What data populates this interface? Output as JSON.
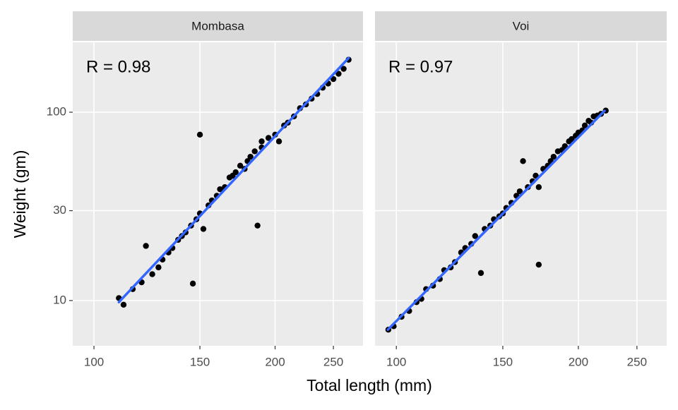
{
  "chart_data": [
    {
      "type": "scatter",
      "title": "Mombasa",
      "annotation": "R = 0.98",
      "x_label": "Total length (mm)",
      "y_label": "Weight (gm)",
      "x": [
        110,
        112,
        116,
        120,
        122,
        125,
        128,
        130,
        133,
        135,
        138,
        140,
        142,
        145,
        146,
        148,
        150,
        150,
        152,
        155,
        157,
        160,
        162,
        165,
        168,
        170,
        172,
        175,
        178,
        180,
        182,
        185,
        187,
        190,
        190,
        195,
        200,
        203,
        207,
        210,
        215,
        220,
        225,
        230,
        235,
        240,
        245,
        250,
        255,
        260,
        265
      ],
      "y": [
        10.3,
        9.5,
        11.5,
        12.5,
        19.5,
        13.8,
        15,
        16.5,
        18,
        19,
        21,
        22,
        23,
        25,
        12.3,
        27,
        76,
        29,
        24,
        32,
        34,
        36,
        39,
        40,
        45,
        46,
        48,
        52,
        50,
        55,
        58,
        62,
        25,
        65,
        70,
        73,
        76,
        70,
        85,
        88,
        95,
        105,
        110,
        118,
        125,
        135,
        142,
        150,
        160,
        170,
        190
      ],
      "fit": {
        "x": [
          110,
          265
        ],
        "y": [
          9.8,
          194
        ]
      },
      "xlim": [
        92.2,
        280
      ],
      "ylim": [
        5.75,
        235
      ],
      "xticks": [
        100,
        150,
        200,
        250
      ],
      "yticks": [
        10,
        30,
        100
      ],
      "log_x": true,
      "log_y": true,
      "grid": true,
      "point_color": "#000000",
      "line_color": "#3366ff"
    },
    {
      "type": "scatter",
      "title": "Voi",
      "annotation": "R = 0.97",
      "x": [
        97,
        99,
        102,
        105,
        108,
        110,
        112,
        115,
        118,
        120,
        123,
        125,
        128,
        130,
        133,
        135,
        138,
        140,
        143,
        145,
        148,
        150,
        152,
        155,
        158,
        160,
        162,
        165,
        168,
        170,
        172,
        172,
        175,
        178,
        180,
        182,
        185,
        188,
        190,
        193,
        195,
        198,
        200,
        203,
        205,
        208,
        210,
        212,
        215,
        218,
        222
      ],
      "y": [
        7,
        7.3,
        8.2,
        8.8,
        9.8,
        10.2,
        11.5,
        12,
        13,
        14.5,
        15,
        16,
        18,
        19,
        20,
        22,
        14,
        24,
        25,
        27,
        28,
        29,
        31,
        33,
        36,
        38,
        55,
        40,
        43,
        46,
        40,
        15.5,
        50,
        52,
        55,
        58,
        62,
        63,
        66,
        70,
        72,
        75,
        78,
        80,
        85,
        90,
        88,
        95,
        96,
        98,
        102
      ],
      "fit": {
        "x": [
          96.8,
          221
        ],
        "y": [
          7.0,
          101.7
        ]
      },
      "xlim": [
        92.2,
        280
      ],
      "ylim": [
        5.75,
        235
      ],
      "xticks": [
        100,
        150,
        200,
        250
      ],
      "log_x": true,
      "log_y": true,
      "grid": true,
      "point_color": "#000000",
      "line_color": "#3366ff"
    }
  ]
}
